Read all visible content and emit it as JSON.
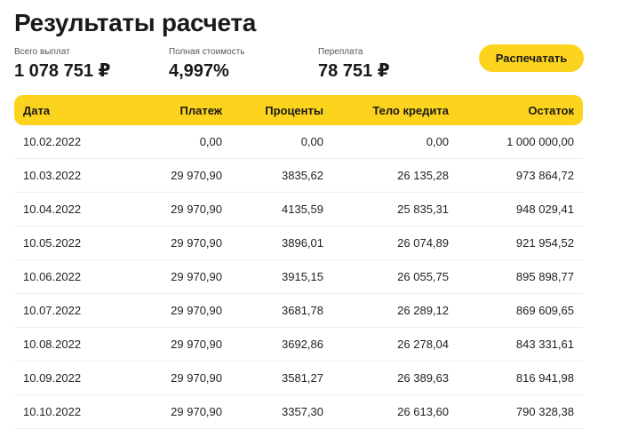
{
  "page": {
    "title": "Результаты расчета"
  },
  "summary": [
    {
      "label": "Всего выплат",
      "value": "1 078 751 ₽"
    },
    {
      "label": "Полная стоимость",
      "value": "4,997%"
    },
    {
      "label": "Переплата",
      "value": "78 751 ₽"
    }
  ],
  "actions": {
    "print_label": "Распечатать"
  },
  "table": {
    "headers": [
      "Дата",
      "Платеж",
      "Проценты",
      "Тело кредита",
      "Остаток"
    ],
    "rows": [
      [
        "10.02.2022",
        "0,00",
        "0,00",
        "0,00",
        "1 000 000,00"
      ],
      [
        "10.03.2022",
        "29 970,90",
        "3835,62",
        "26 135,28",
        "973 864,72"
      ],
      [
        "10.04.2022",
        "29 970,90",
        "4135,59",
        "25 835,31",
        "948 029,41"
      ],
      [
        "10.05.2022",
        "29 970,90",
        "3896,01",
        "26 074,89",
        "921 954,52"
      ],
      [
        "10.06.2022",
        "29 970,90",
        "3915,15",
        "26 055,75",
        "895 898,77"
      ],
      [
        "10.07.2022",
        "29 970,90",
        "3681,78",
        "26 289,12",
        "869 609,65"
      ],
      [
        "10.08.2022",
        "29 970,90",
        "3692,86",
        "26 278,04",
        "843 331,61"
      ],
      [
        "10.09.2022",
        "29 970,90",
        "3581,27",
        "26 389,63",
        "816 941,98"
      ],
      [
        "10.10.2022",
        "29 970,90",
        "3357,30",
        "26 613,60",
        "790 328,38"
      ]
    ]
  },
  "colors": {
    "accent": "#fcd31d",
    "text": "#1a1a1a",
    "divider": "#ececec"
  }
}
